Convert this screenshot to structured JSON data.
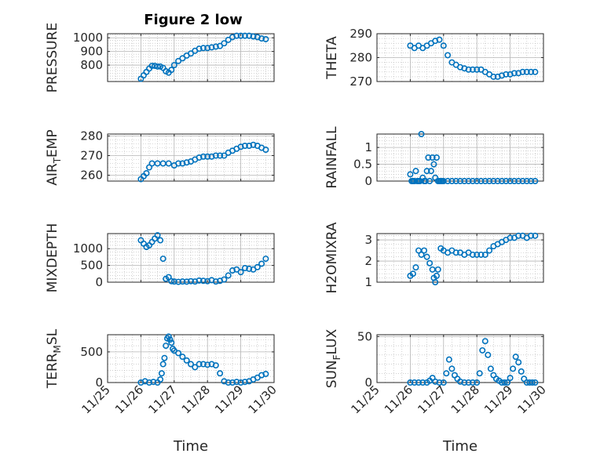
{
  "figure_title": "Figure 2 low",
  "colors": {
    "marker": "#0072BD",
    "axis": "#262626",
    "grid": "#b4b4b4",
    "background": "#ffffff"
  },
  "chart_data": [
    {
      "type": "scatter",
      "marker": "circle",
      "title": "Figure 2 low",
      "ylabel": "PRESSURE",
      "xlabel": "",
      "xlim": [
        "11/25",
        "11/30"
      ],
      "ylim": [
        680,
        1030
      ],
      "yticks": [
        800,
        900,
        1000
      ],
      "x": [
        "11/26 00:00",
        "11/26 02:00",
        "11/26 04:00",
        "11/26 06:00",
        "11/26 08:00",
        "11/26 10:00",
        "11/26 12:00",
        "11/26 14:00",
        "11/26 16:00",
        "11/26 18:00",
        "11/26 20:00",
        "11/26 22:00",
        "11/27 00:00",
        "11/27 03:00",
        "11/27 06:00",
        "11/27 09:00",
        "11/27 12:00",
        "11/27 15:00",
        "11/27 18:00",
        "11/27 21:00",
        "11/28 00:00",
        "11/28 03:00",
        "11/28 06:00",
        "11/28 09:00",
        "11/28 12:00",
        "11/28 15:00",
        "11/28 18:00",
        "11/28 21:00",
        "11/29 00:00",
        "11/29 03:00",
        "11/29 06:00",
        "11/29 09:00",
        "11/29 12:00",
        "11/29 15:00",
        "11/29 18:00"
      ],
      "y": [
        700,
        725,
        750,
        775,
        795,
        795,
        790,
        790,
        780,
        755,
        745,
        765,
        800,
        830,
        850,
        870,
        885,
        905,
        920,
        925,
        925,
        930,
        935,
        940,
        960,
        985,
        1005,
        1015,
        1015,
        1015,
        1015,
        1010,
        1005,
        995,
        990
      ]
    },
    {
      "type": "scatter",
      "marker": "circle",
      "ylabel": "THETA",
      "xlabel": "",
      "xlim": [
        "11/25",
        "11/30"
      ],
      "ylim": [
        270,
        290
      ],
      "yticks": [
        270,
        280,
        290
      ],
      "x": [
        "11/26 00:00",
        "11/26 03:00",
        "11/26 06:00",
        "11/26 09:00",
        "11/26 12:00",
        "11/26 15:00",
        "11/26 18:00",
        "11/26 21:00",
        "11/27 00:00",
        "11/27 03:00",
        "11/27 06:00",
        "11/27 09:00",
        "11/27 12:00",
        "11/27 15:00",
        "11/27 18:00",
        "11/27 21:00",
        "11/28 00:00",
        "11/28 03:00",
        "11/28 06:00",
        "11/28 09:00",
        "11/28 12:00",
        "11/28 15:00",
        "11/28 18:00",
        "11/28 21:00",
        "11/29 00:00",
        "11/29 03:00",
        "11/29 06:00",
        "11/29 09:00",
        "11/29 12:00",
        "11/29 15:00",
        "11/29 18:00"
      ],
      "y": [
        285,
        284,
        285,
        284,
        285,
        286,
        287,
        287.5,
        285,
        281,
        278,
        277,
        276,
        275.5,
        275,
        275,
        275,
        275,
        274,
        273,
        272,
        272,
        272.5,
        273,
        273,
        273.5,
        273.5,
        274,
        274,
        274,
        274
      ]
    },
    {
      "type": "scatter",
      "marker": "circle",
      "ylabel": "AIR_TEMP",
      "ylabel_parts": [
        "AIR",
        "T",
        "EMP"
      ],
      "xlabel": "",
      "xlim": [
        "11/25",
        "11/30"
      ],
      "ylim": [
        257,
        281
      ],
      "yticks": [
        260,
        270,
        280
      ],
      "x": [
        "11/26 00:00",
        "11/26 02:00",
        "11/26 04:00",
        "11/26 06:00",
        "11/26 08:00",
        "11/26 12:00",
        "11/26 16:00",
        "11/26 20:00",
        "11/27 00:00",
        "11/27 03:00",
        "11/27 06:00",
        "11/27 09:00",
        "11/27 12:00",
        "11/27 15:00",
        "11/27 18:00",
        "11/27 21:00",
        "11/28 00:00",
        "11/28 03:00",
        "11/28 06:00",
        "11/28 09:00",
        "11/28 12:00",
        "11/28 15:00",
        "11/28 18:00",
        "11/28 21:00",
        "11/29 00:00",
        "11/29 03:00",
        "11/29 06:00",
        "11/29 09:00",
        "11/29 12:00",
        "11/29 15:00",
        "11/29 18:00"
      ],
      "y": [
        258,
        259.5,
        261,
        264,
        266,
        266,
        266,
        266,
        265,
        266,
        266,
        266.5,
        267,
        268,
        269,
        269.5,
        269.5,
        269.5,
        270,
        270,
        270,
        271.5,
        272.5,
        273.5,
        274.5,
        275,
        275,
        275.5,
        275,
        274,
        273
      ]
    },
    {
      "type": "scatter",
      "marker": "circle",
      "ylabel": "RAINFALL",
      "xlabel": "",
      "xlim": [
        "11/25",
        "11/30"
      ],
      "ylim": [
        0,
        1.4
      ],
      "yticks": [
        0,
        0.5,
        1
      ],
      "ytick_labels": [
        "0",
        "0.5",
        "1"
      ],
      "x": [
        "11/26 00:00",
        "11/26 01:00",
        "11/26 02:00",
        "11/26 03:00",
        "11/26 04:00",
        "11/26 05:00",
        "11/26 06:00",
        "11/26 07:00",
        "11/26 08:00",
        "11/26 09:00",
        "11/26 10:00",
        "11/26 11:00",
        "11/26 12:00",
        "11/26 13:00",
        "11/26 14:00",
        "11/26 15:00",
        "11/26 16:00",
        "11/26 17:00",
        "11/26 18:00",
        "11/26 19:00",
        "11/26 20:00",
        "11/26 21:00",
        "11/26 22:00",
        "11/26 23:00",
        "11/27 00:00",
        "11/27 03:00",
        "11/27 06:00",
        "11/27 09:00",
        "11/27 12:00",
        "11/27 15:00",
        "11/27 18:00",
        "11/27 21:00",
        "11/28 00:00",
        "11/28 03:00",
        "11/28 06:00",
        "11/28 09:00",
        "11/28 12:00",
        "11/28 15:00",
        "11/28 18:00",
        "11/28 21:00",
        "11/29 00:00",
        "11/29 03:00",
        "11/29 06:00",
        "11/29 09:00",
        "11/29 12:00",
        "11/29 15:00",
        "11/29 18:00"
      ],
      "y": [
        0.2,
        0,
        0,
        0,
        0.3,
        0,
        0,
        0,
        1.4,
        0.1,
        0,
        0,
        0.3,
        0.7,
        0,
        0.3,
        0.7,
        0.5,
        0.1,
        0.7,
        0,
        0,
        0,
        0,
        0,
        0,
        0,
        0,
        0,
        0,
        0,
        0,
        0,
        0,
        0,
        0,
        0,
        0,
        0,
        0,
        0,
        0,
        0,
        0,
        0,
        0,
        0
      ]
    },
    {
      "type": "scatter",
      "marker": "circle",
      "ylabel": "MIXDEPTH",
      "xlabel": "",
      "xlim": [
        "11/25",
        "11/30"
      ],
      "ylim": [
        0,
        1450
      ],
      "yticks": [
        0,
        500,
        1000
      ],
      "x": [
        "11/26 00:00",
        "11/26 02:00",
        "11/26 04:00",
        "11/26 06:00",
        "11/26 08:00",
        "11/26 10:00",
        "11/26 12:00",
        "11/26 14:00",
        "11/26 16:00",
        "11/26 18:00",
        "11/26 20:00",
        "11/26 22:00",
        "11/27 00:00",
        "11/27 03:00",
        "11/27 06:00",
        "11/27 09:00",
        "11/27 12:00",
        "11/27 15:00",
        "11/27 18:00",
        "11/27 21:00",
        "11/28 00:00",
        "11/28 03:00",
        "11/28 06:00",
        "11/28 09:00",
        "11/28 12:00",
        "11/28 15:00",
        "11/28 18:00",
        "11/28 21:00",
        "11/29 00:00",
        "11/29 03:00",
        "11/29 06:00",
        "11/29 09:00",
        "11/29 12:00",
        "11/29 15:00",
        "11/29 18:00"
      ],
      "y": [
        1250,
        1150,
        1050,
        1100,
        1200,
        1300,
        1400,
        1250,
        700,
        100,
        150,
        30,
        20,
        10,
        20,
        15,
        30,
        20,
        50,
        40,
        30,
        60,
        20,
        40,
        80,
        200,
        350,
        380,
        300,
        420,
        400,
        380,
        450,
        550,
        700
      ]
    },
    {
      "type": "scatter",
      "marker": "circle",
      "ylabel": "H2OMIXRA",
      "xlabel": "",
      "xlim": [
        "11/25",
        "11/30"
      ],
      "ylim": [
        1,
        3.3
      ],
      "yticks": [
        1,
        2,
        3
      ],
      "x": [
        "11/26 00:00",
        "11/26 02:00",
        "11/26 04:00",
        "11/26 06:00",
        "11/26 08:00",
        "11/26 10:00",
        "11/26 12:00",
        "11/26 14:00",
        "11/26 16:00",
        "11/26 17:00",
        "11/26 18:00",
        "11/26 19:00",
        "11/26 20:00",
        "11/26 22:00",
        "11/27 00:00",
        "11/27 03:00",
        "11/27 06:00",
        "11/27 09:00",
        "11/27 12:00",
        "11/27 15:00",
        "11/27 18:00",
        "11/27 21:00",
        "11/28 00:00",
        "11/28 03:00",
        "11/28 06:00",
        "11/28 09:00",
        "11/28 12:00",
        "11/28 15:00",
        "11/28 18:00",
        "11/28 21:00",
        "11/29 00:00",
        "11/29 03:00",
        "11/29 06:00",
        "11/29 09:00",
        "11/29 12:00",
        "11/29 15:00",
        "11/29 18:00"
      ],
      "y": [
        1.3,
        1.4,
        1.7,
        2.5,
        2.3,
        2.5,
        2.2,
        1.9,
        1.6,
        1.2,
        1.0,
        1.3,
        1.6,
        2.6,
        2.5,
        2.4,
        2.5,
        2.4,
        2.4,
        2.3,
        2.4,
        2.3,
        2.3,
        2.3,
        2.3,
        2.5,
        2.7,
        2.8,
        2.9,
        3.0,
        3.1,
        3.1,
        3.2,
        3.2,
        3.1,
        3.2,
        3.2
      ]
    },
    {
      "type": "scatter",
      "marker": "circle",
      "ylabel": "TERR_MSL",
      "ylabel_parts": [
        "TERR",
        "M",
        "SL"
      ],
      "xlabel": "Time",
      "xlim": [
        "11/25",
        "11/30"
      ],
      "ylim": [
        0,
        780
      ],
      "yticks": [
        0,
        500
      ],
      "x": [
        "11/26 00:00",
        "11/26 03:00",
        "11/26 06:00",
        "11/26 09:00",
        "11/26 12:00",
        "11/26 14:00",
        "11/26 15:00",
        "11/26 16:00",
        "11/26 17:00",
        "11/26 18:00",
        "11/26 19:00",
        "11/26 20:00",
        "11/26 21:00",
        "11/26 22:00",
        "11/26 23:00",
        "11/27 00:00",
        "11/27 03:00",
        "11/27 06:00",
        "11/27 09:00",
        "11/27 12:00",
        "11/27 15:00",
        "11/27 18:00",
        "11/27 21:00",
        "11/28 00:00",
        "11/28 03:00",
        "11/28 06:00",
        "11/28 09:00",
        "11/28 12:00",
        "11/28 15:00",
        "11/28 18:00",
        "11/28 21:00",
        "11/29 00:00",
        "11/29 03:00",
        "11/29 06:00",
        "11/29 09:00",
        "11/29 12:00",
        "11/29 15:00",
        "11/29 18:00"
      ],
      "y": [
        0,
        20,
        0,
        10,
        0,
        50,
        150,
        300,
        400,
        600,
        720,
        750,
        700,
        650,
        550,
        520,
        480,
        420,
        360,
        300,
        250,
        300,
        300,
        290,
        300,
        280,
        150,
        20,
        0,
        0,
        10,
        0,
        10,
        20,
        50,
        80,
        120,
        140
      ]
    },
    {
      "type": "scatter",
      "marker": "circle",
      "ylabel": "SUN_FLUX",
      "ylabel_parts": [
        "SUN",
        "F",
        "LUX"
      ],
      "xlabel": "Time",
      "xlim": [
        "11/25",
        "11/30"
      ],
      "ylim": [
        0,
        52
      ],
      "yticks": [
        0,
        50
      ],
      "x": [
        "11/26 00:00",
        "11/26 03:00",
        "11/26 06:00",
        "11/26 09:00",
        "11/26 12:00",
        "11/26 14:00",
        "11/26 16:00",
        "11/26 18:00",
        "11/26 21:00",
        "11/27 00:00",
        "11/27 02:00",
        "11/27 04:00",
        "11/27 06:00",
        "11/27 08:00",
        "11/27 10:00",
        "11/27 12:00",
        "11/27 15:00",
        "11/27 18:00",
        "11/27 21:00",
        "11/28 00:00",
        "11/28 02:00",
        "11/28 04:00",
        "11/28 06:00",
        "11/28 08:00",
        "11/28 10:00",
        "11/28 12:00",
        "11/28 14:00",
        "11/28 16:00",
        "11/28 18:00",
        "11/28 20:00",
        "11/28 22:00",
        "11/29 00:00",
        "11/29 02:00",
        "11/29 04:00",
        "11/29 06:00",
        "11/29 08:00",
        "11/29 10:00",
        "11/29 12:00",
        "11/29 14:00",
        "11/29 16:00",
        "11/29 18:00"
      ],
      "y": [
        0,
        0,
        0,
        0,
        0,
        2,
        5,
        1,
        0,
        0,
        10,
        25,
        15,
        8,
        4,
        1,
        0,
        0,
        0,
        0,
        10,
        35,
        45,
        30,
        15,
        8,
        4,
        2,
        0,
        0,
        0,
        5,
        15,
        28,
        22,
        12,
        4,
        0,
        0,
        0,
        0
      ]
    }
  ],
  "x_tick_labels": [
    "11/25",
    "11/26",
    "11/27",
    "11/28",
    "11/29",
    "11/30"
  ]
}
